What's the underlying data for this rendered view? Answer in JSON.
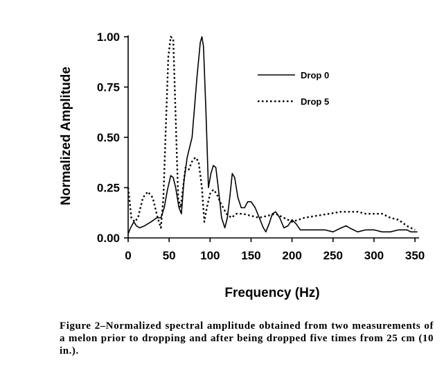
{
  "chart_data": {
    "type": "line",
    "title": "",
    "xlabel": "Frequency (Hz)",
    "ylabel": "Normalized Amplitude",
    "xlim": [
      0,
      355
    ],
    "ylim": [
      0,
      1.0
    ],
    "xticks": [
      0,
      50,
      100,
      150,
      200,
      250,
      300,
      350
    ],
    "yticks": [
      0.0,
      0.25,
      0.5,
      0.75,
      1.0
    ],
    "xtick_labels": [
      "0",
      "50",
      "100",
      "150",
      "200",
      "250",
      "300",
      "350"
    ],
    "ytick_labels": [
      "0.00",
      "0.25",
      "0.50",
      "0.75",
      "1.00"
    ],
    "grid": false,
    "legend_position": "top-right",
    "series": [
      {
        "name": "Drop 0",
        "style": "solid",
        "color": "#000000",
        "x": [
          0,
          3,
          7,
          10,
          14,
          20,
          28,
          35,
          40,
          44,
          48,
          52,
          55,
          58,
          62,
          65,
          68,
          72,
          78,
          84,
          88,
          90,
          92,
          95,
          98,
          101,
          104,
          107,
          110,
          114,
          118,
          121,
          124,
          127,
          130,
          134,
          138,
          142,
          146,
          150,
          155,
          160,
          165,
          168,
          172,
          176,
          180,
          185,
          190,
          195,
          200,
          205,
          210,
          220,
          230,
          240,
          250,
          260,
          266,
          270,
          275,
          280,
          290,
          300,
          310,
          320,
          330,
          340,
          345,
          350,
          353
        ],
        "y": [
          0.02,
          0.05,
          0.08,
          0.06,
          0.05,
          0.06,
          0.08,
          0.1,
          0.1,
          0.15,
          0.24,
          0.31,
          0.3,
          0.25,
          0.15,
          0.12,
          0.28,
          0.4,
          0.5,
          0.8,
          0.97,
          1.0,
          0.95,
          0.62,
          0.25,
          0.32,
          0.36,
          0.35,
          0.25,
          0.1,
          0.05,
          0.1,
          0.2,
          0.32,
          0.3,
          0.2,
          0.15,
          0.15,
          0.18,
          0.18,
          0.15,
          0.1,
          0.05,
          0.03,
          0.07,
          0.12,
          0.13,
          0.1,
          0.05,
          0.06,
          0.09,
          0.07,
          0.04,
          0.04,
          0.04,
          0.04,
          0.03,
          0.05,
          0.06,
          0.05,
          0.04,
          0.03,
          0.04,
          0.04,
          0.03,
          0.03,
          0.04,
          0.04,
          0.03,
          0.03,
          0.03
        ]
      },
      {
        "name": "Drop 5",
        "style": "dotted",
        "color": "#000000",
        "x": [
          0,
          4,
          8,
          12,
          18,
          24,
          30,
          36,
          40,
          43,
          46,
          49,
          52,
          55,
          58,
          61,
          64,
          67,
          70,
          74,
          78,
          82,
          86,
          90,
          93,
          96,
          100,
          104,
          108,
          112,
          116,
          120,
          126,
          132,
          140,
          150,
          160,
          170,
          180,
          190,
          200,
          215,
          230,
          245,
          260,
          270,
          280,
          290,
          300,
          310,
          320,
          330,
          340,
          350
        ],
        "y": [
          0.25,
          0.1,
          0.08,
          0.1,
          0.2,
          0.23,
          0.2,
          0.1,
          0.05,
          0.2,
          0.55,
          0.9,
          1.0,
          0.99,
          0.6,
          0.2,
          0.15,
          0.25,
          0.35,
          0.34,
          0.38,
          0.4,
          0.38,
          0.25,
          0.08,
          0.15,
          0.22,
          0.24,
          0.22,
          0.18,
          0.15,
          0.12,
          0.1,
          0.12,
          0.12,
          0.11,
          0.1,
          0.11,
          0.12,
          0.1,
          0.08,
          0.1,
          0.11,
          0.12,
          0.13,
          0.13,
          0.13,
          0.12,
          0.12,
          0.12,
          0.1,
          0.09,
          0.06,
          0.04
        ]
      }
    ]
  },
  "caption": "Figure 2–Normalized spectral amplitude obtained from two measurements of a melon prior to dropping and after being dropped five times from 25 cm (10 in.)."
}
